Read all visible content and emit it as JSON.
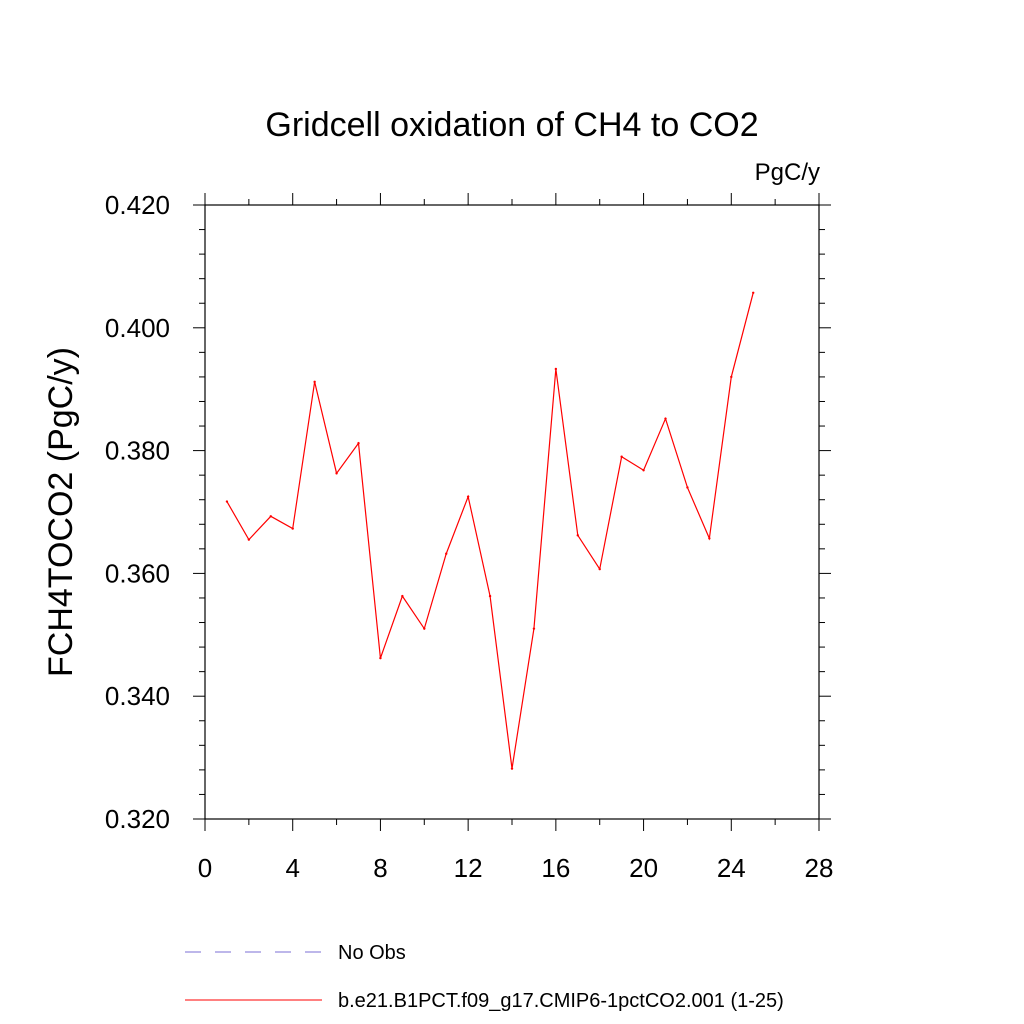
{
  "chart_data": {
    "type": "line",
    "title": "Gridcell oxidation of CH4 to CO2",
    "units_label": "PgC/y",
    "ylabel": "FCH4TOCO2  (PgC/y)",
    "xlabel": "",
    "xlim": [
      0,
      28
    ],
    "ylim": [
      0.32,
      0.42
    ],
    "xticks": [
      "0",
      "4",
      "8",
      "12",
      "16",
      "20",
      "24",
      "28"
    ],
    "yticks": [
      "0.320",
      "0.340",
      "0.360",
      "0.380",
      "0.400",
      "0.420"
    ],
    "grid": false,
    "legend_position": "bottom",
    "series": [
      {
        "name": "No Obs",
        "color": "#7b6fd6",
        "style": "dashed",
        "x": [],
        "values": []
      },
      {
        "name": "b.e21.B1PCT.f09_g17.CMIP6-1pctCO2.001 (1-25)",
        "color": "#ff0000",
        "style": "solid",
        "x": [
          1,
          2,
          3,
          4,
          5,
          6,
          7,
          8,
          9,
          10,
          11,
          12,
          13,
          14,
          15,
          16,
          17,
          18,
          19,
          20,
          21,
          22,
          23,
          24,
          25
        ],
        "values": [
          0.3717,
          0.3655,
          0.3693,
          0.3673,
          0.3912,
          0.3763,
          0.3812,
          0.3462,
          0.3563,
          0.351,
          0.3632,
          0.3725,
          0.3563,
          0.3282,
          0.351,
          0.3933,
          0.3662,
          0.3607,
          0.379,
          0.3768,
          0.3852,
          0.374,
          0.3657,
          0.392,
          0.4057
        ]
      }
    ]
  }
}
